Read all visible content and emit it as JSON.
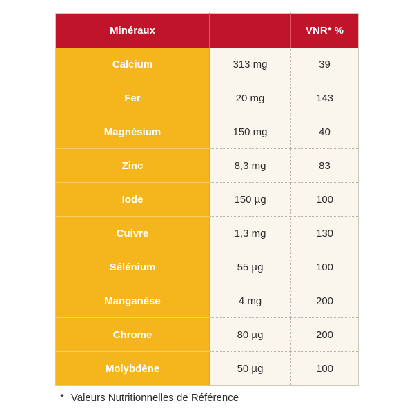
{
  "colors": {
    "header_bg": "#c0142b",
    "name_cell_bg": "#f4b51d",
    "value_cell_bg": "#faf6ed",
    "text_dark": "#2d2d2d",
    "text_light": "#ffffff"
  },
  "table": {
    "headers": [
      "Minéraux",
      "",
      "VNR* %"
    ],
    "rows": [
      {
        "name": "Calcium",
        "amount": "313 mg",
        "vnr": "39"
      },
      {
        "name": "Fer",
        "amount": "20 mg",
        "vnr": "143"
      },
      {
        "name": "Magnésium",
        "amount": "150 mg",
        "vnr": "40"
      },
      {
        "name": "Zinc",
        "amount": "8,3 mg",
        "vnr": "83"
      },
      {
        "name": "Iode",
        "amount": "150 µg",
        "vnr": "100"
      },
      {
        "name": "Cuivre",
        "amount": "1,3 mg",
        "vnr": "130"
      },
      {
        "name": "Sélénium",
        "amount": "55 µg",
        "vnr": "100"
      },
      {
        "name": "Manganèse",
        "amount": "4 mg",
        "vnr": "200"
      },
      {
        "name": "Chrome",
        "amount": "80 µg",
        "vnr": "200"
      },
      {
        "name": "Molybdène",
        "amount": "50 µg",
        "vnr": "100"
      }
    ]
  },
  "footnote": {
    "marker": "*",
    "text": "Valeurs Nutritionnelles de Référence"
  }
}
